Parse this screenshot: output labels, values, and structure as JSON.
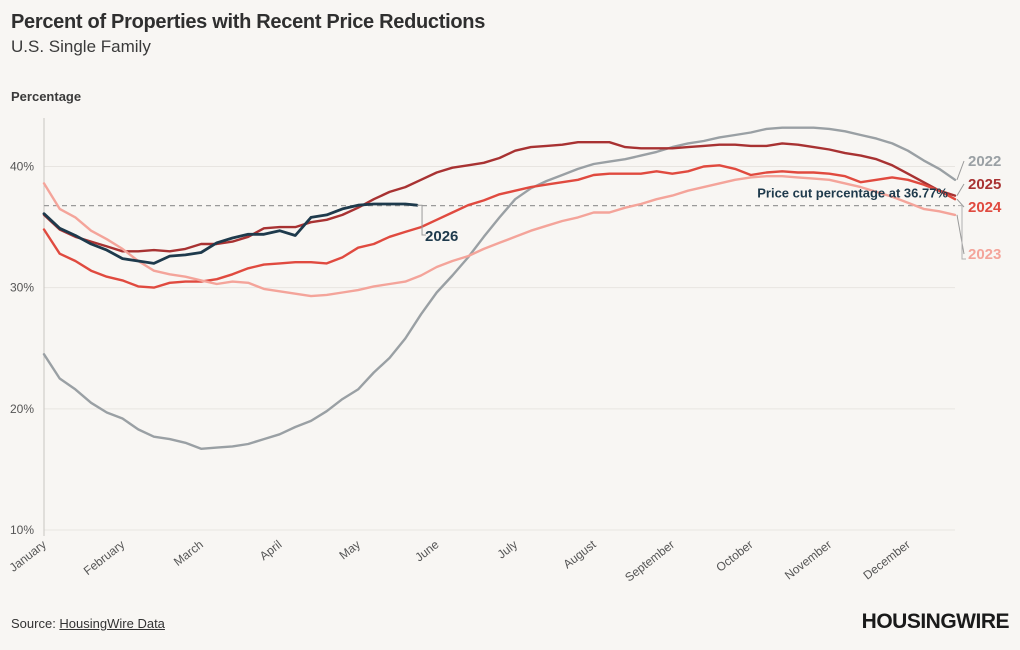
{
  "title": "Percent of Properties with Recent Price Reductions",
  "subtitle": "U.S. Single Family",
  "ylabel": "Percentage",
  "source_prefix": "Source: ",
  "source_link": "HousingWire Data",
  "logo": "HOUSINGWIRE",
  "chart_data": {
    "type": "line",
    "ylim": [
      10,
      44
    ],
    "xlim": [
      0,
      11.6
    ],
    "yticks": [
      10,
      20,
      30,
      40
    ],
    "ytick_labels": [
      "10%",
      "20%",
      "30%",
      "40%"
    ],
    "xtick_labels": [
      "January",
      "February",
      "March",
      "April",
      "May",
      "June",
      "July",
      "August",
      "September",
      "October",
      "November",
      "December"
    ],
    "grid": true,
    "reference_line": {
      "value": 36.77,
      "label": "Price cut percentage at 36.77%",
      "color": "#9a9a9a"
    },
    "series": [
      {
        "name": "2022",
        "color": "#9aa0a4",
        "x": [
          0,
          0.2,
          0.4,
          0.6,
          0.8,
          1.0,
          1.2,
          1.4,
          1.6,
          1.8,
          2.0,
          2.2,
          2.4,
          2.6,
          2.8,
          3.0,
          3.2,
          3.4,
          3.6,
          3.8,
          4.0,
          4.2,
          4.4,
          4.6,
          4.8,
          5.0,
          5.2,
          5.4,
          5.6,
          5.8,
          6.0,
          6.2,
          6.4,
          6.6,
          6.8,
          7.0,
          7.2,
          7.4,
          7.6,
          7.8,
          8.0,
          8.2,
          8.4,
          8.6,
          8.8,
          9.0,
          9.2,
          9.4,
          9.6,
          9.8,
          10.0,
          10.2,
          10.4,
          10.6,
          10.8,
          11.0,
          11.2,
          11.4,
          11.6
        ],
        "values": [
          24.5,
          22.5,
          21.6,
          20.5,
          19.7,
          19.2,
          18.3,
          17.7,
          17.5,
          17.2,
          16.7,
          16.8,
          16.9,
          17.1,
          17.5,
          17.9,
          18.5,
          19.0,
          19.8,
          20.8,
          21.6,
          23.0,
          24.2,
          25.8,
          27.8,
          29.6,
          31.0,
          32.5,
          34.2,
          35.8,
          37.3,
          38.2,
          38.8,
          39.3,
          39.8,
          40.2,
          40.4,
          40.6,
          40.9,
          41.2,
          41.6,
          41.9,
          42.1,
          42.4,
          42.6,
          42.8,
          43.1,
          43.2,
          43.2,
          43.2,
          43.1,
          42.9,
          42.6,
          42.3,
          41.9,
          41.3,
          40.5,
          39.8,
          38.9
        ]
      },
      {
        "name": "2025",
        "color": "#a83232",
        "x": [
          0,
          0.2,
          0.4,
          0.6,
          0.8,
          1.0,
          1.2,
          1.4,
          1.6,
          1.8,
          2.0,
          2.2,
          2.4,
          2.6,
          2.8,
          3.0,
          3.2,
          3.4,
          3.6,
          3.8,
          4.0,
          4.2,
          4.4,
          4.6,
          4.8,
          5.0,
          5.2,
          5.4,
          5.6,
          5.8,
          6.0,
          6.2,
          6.4,
          6.6,
          6.8,
          7.0,
          7.2,
          7.4,
          7.6,
          7.8,
          8.0,
          8.2,
          8.4,
          8.6,
          8.8,
          9.0,
          9.2,
          9.4,
          9.6,
          9.8,
          10.0,
          10.2,
          10.4,
          10.6,
          10.8,
          11.0,
          11.2,
          11.4,
          11.6
        ],
        "values": [
          36.0,
          34.8,
          34.2,
          33.8,
          33.4,
          33.0,
          33.0,
          33.1,
          33.0,
          33.2,
          33.6,
          33.6,
          33.8,
          34.2,
          34.9,
          35.0,
          35.0,
          35.4,
          35.6,
          36.0,
          36.6,
          37.3,
          37.9,
          38.3,
          38.9,
          39.5,
          39.9,
          40.1,
          40.3,
          40.7,
          41.3,
          41.6,
          41.7,
          41.8,
          42.0,
          42.0,
          42.0,
          41.6,
          41.5,
          41.5,
          41.5,
          41.6,
          41.7,
          41.8,
          41.8,
          41.7,
          41.7,
          41.9,
          41.8,
          41.6,
          41.4,
          41.1,
          40.9,
          40.6,
          40.1,
          39.4,
          38.7,
          38.0,
          37.6
        ]
      },
      {
        "name": "2024",
        "color": "#e04a3f",
        "x": [
          0,
          0.2,
          0.4,
          0.6,
          0.8,
          1.0,
          1.2,
          1.4,
          1.6,
          1.8,
          2.0,
          2.2,
          2.4,
          2.6,
          2.8,
          3.0,
          3.2,
          3.4,
          3.6,
          3.8,
          4.0,
          4.2,
          4.4,
          4.6,
          4.8,
          5.0,
          5.2,
          5.4,
          5.6,
          5.8,
          6.0,
          6.2,
          6.4,
          6.6,
          6.8,
          7.0,
          7.2,
          7.4,
          7.6,
          7.8,
          8.0,
          8.2,
          8.4,
          8.6,
          8.8,
          9.0,
          9.2,
          9.4,
          9.6,
          9.8,
          10.0,
          10.2,
          10.4,
          10.6,
          10.8,
          11.0,
          11.2,
          11.4,
          11.6
        ],
        "values": [
          34.8,
          32.8,
          32.2,
          31.4,
          30.9,
          30.6,
          30.1,
          30.0,
          30.4,
          30.5,
          30.5,
          30.7,
          31.1,
          31.6,
          31.9,
          32.0,
          32.1,
          32.1,
          32.0,
          32.5,
          33.3,
          33.6,
          34.2,
          34.6,
          35.0,
          35.6,
          36.2,
          36.8,
          37.2,
          37.7,
          38.0,
          38.3,
          38.5,
          38.7,
          38.9,
          39.3,
          39.4,
          39.4,
          39.4,
          39.6,
          39.4,
          39.6,
          40.0,
          40.1,
          39.8,
          39.3,
          39.5,
          39.6,
          39.5,
          39.5,
          39.4,
          39.2,
          38.7,
          38.9,
          39.1,
          38.9,
          38.5,
          38.0,
          37.3
        ]
      },
      {
        "name": "2023",
        "color": "#f4a49a",
        "x": [
          0,
          0.2,
          0.4,
          0.6,
          0.8,
          1.0,
          1.2,
          1.4,
          1.6,
          1.8,
          2.0,
          2.2,
          2.4,
          2.6,
          2.8,
          3.0,
          3.2,
          3.4,
          3.6,
          3.8,
          4.0,
          4.2,
          4.4,
          4.6,
          4.8,
          5.0,
          5.2,
          5.4,
          5.6,
          5.8,
          6.0,
          6.2,
          6.4,
          6.6,
          6.8,
          7.0,
          7.2,
          7.4,
          7.6,
          7.8,
          8.0,
          8.2,
          8.4,
          8.6,
          8.8,
          9.0,
          9.2,
          9.4,
          9.6,
          9.8,
          10.0,
          10.2,
          10.4,
          10.6,
          10.8,
          11.0,
          11.2,
          11.4,
          11.6
        ],
        "values": [
          38.6,
          36.5,
          35.8,
          34.7,
          34.0,
          33.2,
          32.2,
          31.4,
          31.1,
          30.9,
          30.6,
          30.3,
          30.5,
          30.4,
          29.9,
          29.7,
          29.5,
          29.3,
          29.4,
          29.6,
          29.8,
          30.1,
          30.3,
          30.5,
          31.0,
          31.7,
          32.2,
          32.6,
          33.2,
          33.7,
          34.2,
          34.7,
          35.1,
          35.5,
          35.8,
          36.2,
          36.2,
          36.6,
          36.9,
          37.3,
          37.6,
          38.0,
          38.3,
          38.6,
          38.9,
          39.1,
          39.2,
          39.2,
          39.1,
          39.0,
          38.9,
          38.6,
          38.3,
          37.9,
          37.5,
          37.0,
          36.5,
          36.3,
          36.0
        ]
      },
      {
        "name": "2026",
        "color": "#1e3a4c",
        "x": [
          0,
          0.2,
          0.4,
          0.6,
          0.8,
          1.0,
          1.2,
          1.4,
          1.6,
          1.8,
          2.0,
          2.2,
          2.4,
          2.6,
          2.8,
          3.0,
          3.2,
          3.4,
          3.6,
          3.8,
          4.0,
          4.2,
          4.4,
          4.6,
          4.75
        ],
        "values": [
          36.1,
          34.9,
          34.3,
          33.6,
          33.1,
          32.4,
          32.2,
          32.0,
          32.6,
          32.7,
          32.9,
          33.7,
          34.1,
          34.4,
          34.4,
          34.7,
          34.3,
          35.8,
          36.0,
          36.5,
          36.8,
          36.9,
          36.9,
          36.9,
          36.8
        ]
      }
    ]
  },
  "end_labels": {
    "2022": "2022",
    "2025": "2025",
    "2024": "2024",
    "2023": "2023",
    "2026": "2026"
  }
}
